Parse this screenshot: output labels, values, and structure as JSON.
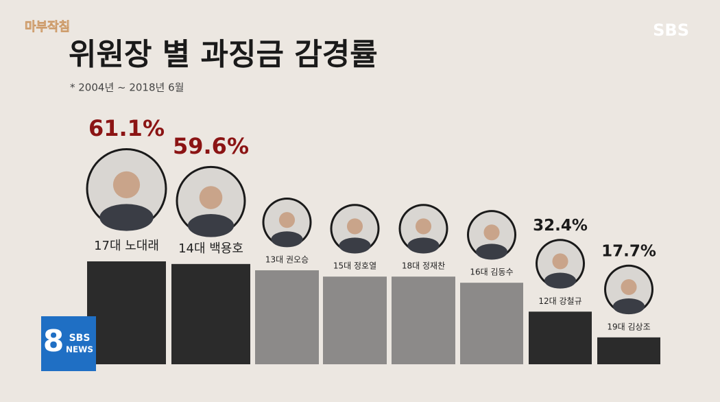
{
  "chart_data": {
    "type": "bar",
    "title": "위원장 별 과징금 감경률",
    "subtitle": "* 2004년 ~ 2018년 6월",
    "categories": [
      "17대 노대래",
      "14대 백용호",
      "13대 권오승",
      "15대 정호열",
      "18대 정재찬",
      "16대 김동수",
      "12대 강철규",
      "19대 김상조"
    ],
    "values": [
      61.1,
      59.6,
      56,
      52.4,
      52.4,
      48.9,
      32.4,
      17.7
    ],
    "value_labels": [
      "61.1%",
      "59.6%",
      null,
      null,
      null,
      null,
      "32.4%",
      "17.7%"
    ],
    "colors": [
      "#2b2b2b",
      "#2b2b2b",
      "#8c8a89",
      "#8c8a89",
      "#8c8a89",
      "#8c8a89",
      "#2b2b2b",
      "#2b2b2b"
    ]
  },
  "branding": {
    "program": "마부작침",
    "network": "SBS",
    "news_number": "8",
    "news_network": "SBS",
    "news_word": "NEWS"
  }
}
